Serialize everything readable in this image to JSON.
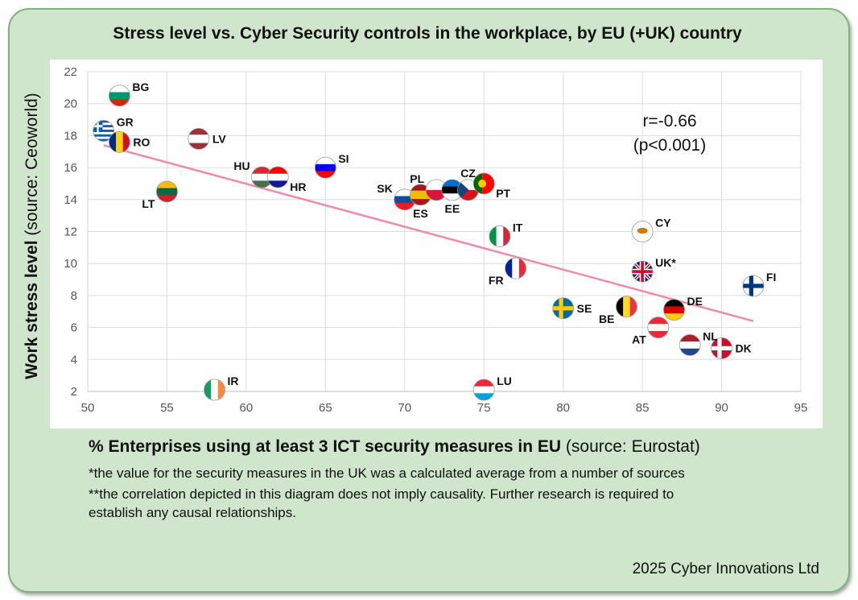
{
  "chart_data": {
    "type": "scatter",
    "title": "Stress level vs. Cyber Security controls in the workplace, by EU (+UK) country",
    "ylabel_bold": "Work stress level",
    "ylabel_rest": " (source: Ceoworld)",
    "xlabel_bold": "% Enterprises using at least 3 ICT security measures in EU",
    "xlabel_rest": " (source: Eurostat)",
    "xlim": [
      50,
      95
    ],
    "ylim": [
      2,
      22
    ],
    "xticks": [
      50,
      55,
      60,
      65,
      70,
      75,
      80,
      85,
      90,
      95
    ],
    "yticks": [
      2,
      4,
      6,
      8,
      10,
      12,
      14,
      16,
      18,
      20,
      22
    ],
    "grid": true,
    "correlation_text": [
      "r=-0.66",
      "(p<0.001)"
    ],
    "trendline": {
      "x": [
        51,
        92
      ],
      "y": [
        17.4,
        6.4
      ],
      "color": "#f08aa6"
    },
    "points": [
      {
        "label": "BG",
        "x": 52,
        "y": 20.5,
        "label_pos": "right-up",
        "flag": "bulgaria"
      },
      {
        "label": "GR",
        "x": 51,
        "y": 18.3,
        "label_pos": "right-up",
        "flag": "greece"
      },
      {
        "label": "RO",
        "x": 52,
        "y": 17.6,
        "label_pos": "right",
        "flag": "romania"
      },
      {
        "label": "LV",
        "x": 57,
        "y": 17.8,
        "label_pos": "right",
        "flag": "latvia"
      },
      {
        "label": "LT",
        "x": 55,
        "y": 14.5,
        "label_pos": "left-down",
        "flag": "lithuania"
      },
      {
        "label": "HU",
        "x": 61,
        "y": 15.4,
        "label_pos": "left-up",
        "flag": "hungary"
      },
      {
        "label": "HR",
        "x": 62,
        "y": 15.4,
        "label_pos": "right-down",
        "flag": "croatia"
      },
      {
        "label": "SI",
        "x": 65,
        "y": 16.0,
        "label_pos": "right-up",
        "flag": "slovenia"
      },
      {
        "label": "SK",
        "x": 70,
        "y": 14.0,
        "label_pos": "left-up",
        "flag": "slovakia"
      },
      {
        "label": "ES",
        "x": 71,
        "y": 14.3,
        "label_pos": "down",
        "flag": "spain"
      },
      {
        "label": "PL",
        "x": 72,
        "y": 14.6,
        "label_pos": "left-up",
        "flag": "poland"
      },
      {
        "label": "EE",
        "x": 73,
        "y": 14.6,
        "label_pos": "down",
        "flag": "estonia"
      },
      {
        "label": "CZ",
        "x": 74,
        "y": 14.6,
        "label_pos": "up",
        "flag": "czechia"
      },
      {
        "label": "PT",
        "x": 75,
        "y": 15.0,
        "label_pos": "right-down",
        "flag": "portugal"
      },
      {
        "label": "IT",
        "x": 76,
        "y": 11.7,
        "label_pos": "right-up",
        "flag": "italy"
      },
      {
        "label": "FR",
        "x": 77,
        "y": 9.7,
        "label_pos": "left-down",
        "flag": "france"
      },
      {
        "label": "CY",
        "x": 85,
        "y": 12.0,
        "label_pos": "right-up",
        "flag": "cyprus"
      },
      {
        "label": "UK*",
        "x": 85,
        "y": 9.5,
        "label_pos": "right-up",
        "flag": "uk"
      },
      {
        "label": "FI",
        "x": 92,
        "y": 8.6,
        "label_pos": "right-up",
        "flag": "finland"
      },
      {
        "label": "SE",
        "x": 80,
        "y": 7.2,
        "label_pos": "right",
        "flag": "sweden"
      },
      {
        "label": "BE",
        "x": 84,
        "y": 7.3,
        "label_pos": "left-down",
        "flag": "belgium"
      },
      {
        "label": "DE",
        "x": 87,
        "y": 7.1,
        "label_pos": "right-up",
        "flag": "germany"
      },
      {
        "label": "AT",
        "x": 86,
        "y": 6.0,
        "label_pos": "left-down",
        "flag": "austria"
      },
      {
        "label": "NL",
        "x": 88,
        "y": 4.9,
        "label_pos": "right-up",
        "flag": "netherlands"
      },
      {
        "label": "DK",
        "x": 90,
        "y": 4.7,
        "label_pos": "right",
        "flag": "denmark"
      },
      {
        "label": "IR",
        "x": 58,
        "y": 2.1,
        "label_pos": "right-up",
        "flag": "ireland"
      },
      {
        "label": "LU",
        "x": 75,
        "y": 2.1,
        "label_pos": "right-up",
        "flag": "luxembourg"
      }
    ]
  },
  "notes": [
    "*the value for the security measures in the UK was a calculated average from a number of sources",
    "**the correlation depicted in this diagram does not imply causality. Further research is required to",
    "establish any causal relationships."
  ],
  "credit": "2025 Cyber Innovations Ltd",
  "flags": {
    "bulgaria": {
      "type": "h",
      "colors": [
        "#ffffff",
        "#00966e",
        "#d62612"
      ]
    },
    "greece": {
      "type": "stripes",
      "colors": [
        "#0d5eaf",
        "#ffffff"
      ]
    },
    "romania": {
      "type": "v",
      "colors": [
        "#002b7f",
        "#fcd116",
        "#ce1126"
      ]
    },
    "latvia": {
      "type": "hw",
      "colors": [
        "#9e3039",
        "#ffffff",
        "#9e3039"
      ]
    },
    "lithuania": {
      "type": "h",
      "colors": [
        "#fdb913",
        "#006a44",
        "#c1272d"
      ]
    },
    "hungary": {
      "type": "h",
      "colors": [
        "#ce2939",
        "#ffffff",
        "#477050"
      ]
    },
    "croatia": {
      "type": "h",
      "colors": [
        "#ff0000",
        "#ffffff",
        "#171796"
      ]
    },
    "slovenia": {
      "type": "h",
      "colors": [
        "#ffffff",
        "#0000ff",
        "#ff0000"
      ]
    },
    "slovakia": {
      "type": "h",
      "colors": [
        "#ffffff",
        "#0b4ea2",
        "#ee1c25"
      ]
    },
    "spain": {
      "type": "hw",
      "colors": [
        "#aa151b",
        "#f1bf00",
        "#aa151b"
      ]
    },
    "poland": {
      "type": "h",
      "colors": [
        "#ffffff",
        "#dc143c"
      ]
    },
    "estonia": {
      "type": "h",
      "colors": [
        "#0072ce",
        "#000000",
        "#ffffff"
      ]
    },
    "czechia": {
      "type": "czech",
      "colors": [
        "#ffffff",
        "#d7141a",
        "#11457e"
      ]
    },
    "portugal": {
      "type": "portugal",
      "colors": [
        "#006600",
        "#ff0000",
        "#ffcc00"
      ]
    },
    "italy": {
      "type": "v",
      "colors": [
        "#009246",
        "#ffffff",
        "#ce2b37"
      ]
    },
    "france": {
      "type": "v",
      "colors": [
        "#002395",
        "#ffffff",
        "#ed2939"
      ]
    },
    "cyprus": {
      "type": "cyprus",
      "colors": [
        "#ffffff",
        "#d57800"
      ]
    },
    "uk": {
      "type": "uk",
      "colors": [
        "#012169",
        "#ffffff",
        "#c8102e"
      ]
    },
    "finland": {
      "type": "nordic",
      "colors": [
        "#ffffff",
        "#003580"
      ]
    },
    "sweden": {
      "type": "nordic",
      "colors": [
        "#006aa7",
        "#fecc00"
      ]
    },
    "belgium": {
      "type": "v",
      "colors": [
        "#000000",
        "#fdda24",
        "#ef3340"
      ]
    },
    "germany": {
      "type": "h",
      "colors": [
        "#000000",
        "#dd0000",
        "#ffce00"
      ]
    },
    "austria": {
      "type": "h",
      "colors": [
        "#ed2939",
        "#ffffff",
        "#ed2939"
      ]
    },
    "netherlands": {
      "type": "h",
      "colors": [
        "#ae1c28",
        "#ffffff",
        "#21468b"
      ]
    },
    "denmark": {
      "type": "nordic",
      "colors": [
        "#c8102e",
        "#ffffff"
      ]
    },
    "ireland": {
      "type": "v",
      "colors": [
        "#169b62",
        "#ffffff",
        "#ff883e"
      ]
    },
    "luxembourg": {
      "type": "h",
      "colors": [
        "#ed2939",
        "#ffffff",
        "#00a1de"
      ]
    }
  }
}
